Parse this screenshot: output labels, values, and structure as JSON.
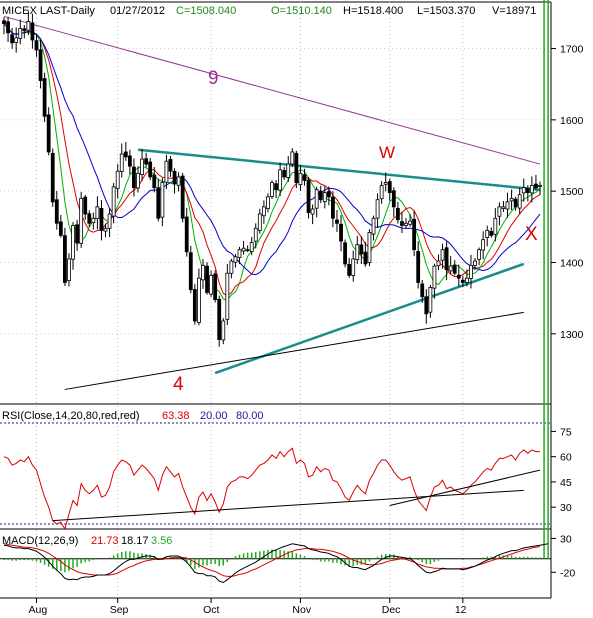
{
  "header": {
    "symbol": "MICEX LAST-Daily",
    "date": "01/27/2012",
    "close": "C=1508.040",
    "open": "O=1510.140",
    "high": "H=1518.400",
    "low": "L=1503.370",
    "volume": "V=18971"
  },
  "rsi_header": {
    "label": "RSI(Close,14,20,80,red,red)",
    "value": "63.38",
    "lower": "20.00",
    "upper": "80.00"
  },
  "macd_header": {
    "label": "MACD(12,26,9)",
    "macd": "21.73",
    "signal": "18.17",
    "hist": "3.56"
  },
  "annotations": {
    "nine": "9",
    "w": "W",
    "four": "4",
    "x": "X"
  },
  "colors": {
    "price": "#000000",
    "ma_green": "#00b000",
    "ma_red": "#e00000",
    "ma_blue": "#0000cc",
    "resistance": "#993399",
    "triangle": "#1a8c8c",
    "rsi": "#dd0000",
    "macd": "#000000",
    "macd_signal": "#dd0000",
    "histogram": "#22aa22",
    "accent_red": "#dd0000",
    "accent_purple": "#993399",
    "rsi_ref": "#1a1aa0"
  },
  "chart_data": {
    "type": "candlestick",
    "x_labels": [
      "Aug",
      "Sep",
      "Oct",
      "Nov",
      "Dec",
      "12"
    ],
    "price_ticks": [
      1300,
      1400,
      1500,
      1600,
      1700
    ],
    "price_ylim": [
      1210,
      1740
    ],
    "rsi_ticks": [
      30,
      45,
      60,
      75
    ],
    "rsi_ylim": [
      20,
      80
    ],
    "macd_ticks": [
      -20,
      30
    ],
    "macd_ylim": [
      -55,
      38
    ],
    "last_close": 1508.04,
    "closes": [
      1735,
      1722,
      1708,
      1715,
      1728,
      1725,
      1738,
      1712,
      1698,
      1655,
      1605,
      1555,
      1485,
      1455,
      1438,
      1372,
      1405,
      1452,
      1428,
      1490,
      1468,
      1455,
      1462,
      1478,
      1445,
      1448,
      1468,
      1506,
      1528,
      1552,
      1548,
      1535,
      1505,
      1525,
      1545,
      1538,
      1520,
      1505,
      1462,
      1512,
      1542,
      1528,
      1510,
      1520,
      1462,
      1415,
      1362,
      1318,
      1378,
      1396,
      1358,
      1382,
      1348,
      1292,
      1318,
      1385,
      1402,
      1408,
      1418,
      1420,
      1418,
      1428,
      1448,
      1468,
      1478,
      1492,
      1512,
      1502,
      1530,
      1520,
      1538,
      1555,
      1512,
      1525,
      1515,
      1470,
      1475,
      1502,
      1488,
      1498,
      1492,
      1462,
      1455,
      1430,
      1398,
      1382,
      1405,
      1425,
      1412,
      1398,
      1442,
      1462,
      1488,
      1508,
      1512,
      1498,
      1478,
      1460,
      1452,
      1455,
      1458,
      1418,
      1372,
      1352,
      1328,
      1365,
      1395,
      1402,
      1418,
      1390,
      1395,
      1385,
      1378,
      1372,
      1378,
      1396,
      1402,
      1418,
      1432,
      1445,
      1438,
      1462,
      1478,
      1478,
      1485,
      1490,
      1478,
      1495,
      1505,
      1498,
      1508,
      1505,
      1508
    ],
    "rsi_values": [
      60,
      59,
      55,
      56,
      58,
      57,
      60,
      55,
      52,
      44,
      36,
      30,
      22,
      20,
      21,
      17,
      26,
      34,
      31,
      44,
      40,
      38,
      40,
      43,
      36,
      37,
      42,
      51,
      55,
      58,
      57,
      55,
      49,
      52,
      55,
      53,
      50,
      47,
      40,
      49,
      54,
      51,
      48,
      50,
      42,
      36,
      30,
      26,
      36,
      39,
      34,
      38,
      33,
      27,
      32,
      42,
      45,
      46,
      48,
      48,
      47,
      49,
      52,
      55,
      56,
      58,
      61,
      59,
      63,
      60,
      63,
      65,
      56,
      58,
      56,
      48,
      49,
      54,
      51,
      53,
      52,
      46,
      45,
      41,
      36,
      34,
      39,
      43,
      40,
      38,
      46,
      50,
      55,
      58,
      58,
      55,
      51,
      48,
      46,
      47,
      48,
      40,
      34,
      31,
      28,
      36,
      42,
      43,
      46,
      41,
      42,
      40,
      39,
      38,
      40,
      43,
      45,
      48,
      51,
      53,
      52,
      56,
      59,
      59,
      60,
      61,
      58,
      62,
      64,
      62,
      64,
      63,
      63
    ],
    "macd_values": [
      20,
      19,
      17,
      16,
      16,
      15,
      15,
      13,
      11,
      7,
      2,
      -4,
      -11,
      -17,
      -22,
      -29,
      -31,
      -30,
      -31,
      -28,
      -27,
      -27,
      -26,
      -24,
      -24,
      -24,
      -22,
      -18,
      -13,
      -8,
      -4,
      -1,
      -1,
      1,
      3,
      4,
      4,
      3,
      -1,
      0,
      3,
      4,
      4,
      4,
      0,
      -5,
      -12,
      -20,
      -22,
      -22,
      -25,
      -25,
      -27,
      -33,
      -35,
      -31,
      -26,
      -21,
      -17,
      -14,
      -11,
      -8,
      -5,
      -1,
      3,
      7,
      11,
      13,
      16,
      18,
      20,
      22,
      21,
      20,
      19,
      15,
      13,
      12,
      10,
      9,
      8,
      5,
      3,
      -1,
      -6,
      -11,
      -13,
      -13,
      -15,
      -16,
      -13,
      -10,
      -5,
      -1,
      2,
      4,
      4,
      3,
      2,
      1,
      0,
      -4,
      -10,
      -15,
      -20,
      -21,
      -19,
      -17,
      -14,
      -15,
      -15,
      -15,
      -15,
      -16,
      -15,
      -13,
      -11,
      -8,
      -5,
      -2,
      0,
      3,
      6,
      8,
      10,
      12,
      12,
      14,
      16,
      17,
      18,
      19,
      20,
      21,
      22
    ],
    "macd_signal_values": [
      22,
      21,
      20,
      19,
      18,
      17,
      17,
      16,
      15,
      13,
      11,
      8,
      4,
      0,
      -4,
      -9,
      -13,
      -16,
      -19,
      -21,
      -22,
      -23,
      -24,
      -24,
      -24,
      -24,
      -24,
      -23,
      -21,
      -18,
      -15,
      -12,
      -10,
      -7,
      -5,
      -3,
      -2,
      -1,
      -1,
      -1,
      0,
      1,
      2,
      2,
      2,
      1,
      -2,
      -5,
      -9,
      -12,
      -15,
      -17,
      -19,
      -22,
      -25,
      -26,
      -26,
      -25,
      -23,
      -22,
      -20,
      -17,
      -15,
      -12,
      -9,
      -6,
      -3,
      0,
      3,
      6,
      9,
      11,
      13,
      14,
      15,
      15,
      15,
      14,
      14,
      13,
      12,
      11,
      9,
      7,
      4,
      1,
      -2,
      -4,
      -6,
      -8,
      -9,
      -9,
      -8,
      -7,
      -5,
      -3,
      -2,
      -1,
      0,
      -1,
      -3,
      -5,
      -8,
      -10,
      -12,
      -13,
      -14,
      -14,
      -15,
      -15,
      -15,
      -15,
      -15,
      -14,
      -14,
      -12,
      -11,
      -9,
      -7,
      -5,
      -3,
      -1,
      1,
      3,
      5,
      7,
      9,
      11,
      13,
      14,
      16,
      17,
      18
    ],
    "trendlines": [
      {
        "name": "resistance-9",
        "from": [
          0,
          1745
        ],
        "to": [
          132,
          1538
        ]
      },
      {
        "name": "triangle-upper",
        "from": [
          33,
          1558
        ],
        "to": [
          132,
          1502
        ]
      },
      {
        "name": "triangle-lower",
        "from": [
          52,
          1245
        ],
        "to": [
          128,
          1398
        ]
      },
      {
        "name": "long-support",
        "from": [
          15,
          1222
        ],
        "to": [
          128,
          1330
        ]
      }
    ]
  }
}
